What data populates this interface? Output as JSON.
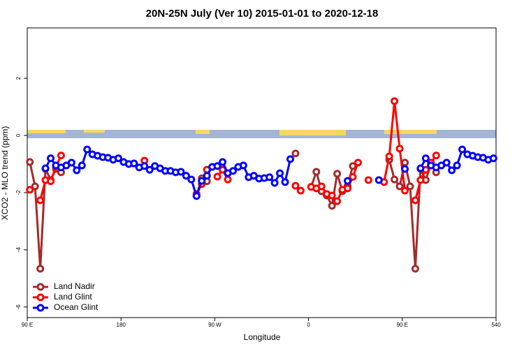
{
  "chart_data": {
    "type": "line",
    "title": "20N-25N July (Ver 10)   2015-01-01 to 2020-12-18",
    "xlabel": "Longitude",
    "ylabel": "XCO2 - MLO trend (ppm)",
    "xlim": [
      90,
      540
    ],
    "ylim": [
      -6.37,
      3.76
    ],
    "xticks": [
      {
        "value": 90,
        "label": "90 E"
      },
      180,
      {
        "value": 270,
        "label": "90 W"
      },
      {
        "value": 360,
        "label": "0"
      },
      {
        "value": 450,
        "label": "90 E"
      },
      540
    ],
    "yticks": [
      2,
      0,
      -2,
      -4,
      -6
    ],
    "legend": "bottomleft",
    "series": [
      {
        "name": "Land Nadir",
        "color": "#a52a2a",
        "x": [
          92.5,
          97.5,
          102.5,
          107.5,
          112.5,
          117.5,
          122.5,
          127.5,
          252.5,
          257.5,
          262.5,
          342.5,
          347.5,
          352.5,
          362.5,
          367.5,
          372.5,
          377.5,
          382.5,
          387.5,
          392.5,
          397.5,
          402.5,
          407.5,
          437.5,
          442.5,
          447.5,
          452.5,
          457.5,
          462.5,
          467.5,
          472.5,
          477.5,
          482.5
        ],
        "values": [
          -0.93,
          -1.78,
          -4.66,
          -1.17,
          -1.56,
          -1.17,
          -1.29,
          null,
          -2.1,
          -1.5,
          -1.6,
          null,
          -0.63,
          null,
          -1.8,
          -1.27,
          -1.95,
          -2.1,
          -2.46,
          -1.34,
          -1.95,
          -1.76,
          -1.07,
          null,
          -0.85,
          -1.54,
          -1.78,
          -0.95,
          -1.78,
          -4.66,
          -1.17,
          -1.56,
          -1.0,
          -1.29
        ]
      },
      {
        "name": "Land Glint",
        "color": "#ff0000",
        "x": [
          92.5,
          97.5,
          102.5,
          107.5,
          112.5,
          117.5,
          122.5,
          127.5,
          202.5,
          207.5,
          252.5,
          257.5,
          262.5,
          267.5,
          272.5,
          277.5,
          282.5,
          287.5,
          347.5,
          352.5,
          357.5,
          362.5,
          367.5,
          372.5,
          377.5,
          382.5,
          387.5,
          392.5,
          397.5,
          402.5,
          407.5,
          412.5,
          417.5,
          422.5,
          432.5,
          437.5,
          442.5,
          447.5,
          452.5,
          457.5,
          462.5,
          467.5,
          472.5,
          477.5,
          482.5
        ],
        "values": [
          -1.9,
          null,
          -2.27,
          -1.56,
          -1.6,
          -1.1,
          -0.7,
          null,
          -0.88,
          null,
          -2.05,
          -1.7,
          -1.2,
          null,
          -1.44,
          -1.2,
          -1.54,
          null,
          -1.76,
          -1.93,
          null,
          -1.8,
          -1.85,
          -1.78,
          -2.05,
          -2.1,
          -2.3,
          -1.9,
          -1.85,
          -1.45,
          -0.95,
          null,
          -1.56,
          null,
          -1.63,
          -0.73,
          1.2,
          -0.46,
          -1.93,
          null,
          -2.27,
          -1.56,
          -1.2,
          -0.95,
          -0.7
        ]
      },
      {
        "name": "Ocean Glint",
        "color": "#0000ff",
        "x": [
          107.5,
          112.5,
          117.5,
          122.5,
          127.5,
          132.5,
          137.5,
          142.5,
          147.5,
          152.5,
          157.5,
          162.5,
          167.5,
          172.5,
          177.5,
          182.5,
          187.5,
          192.5,
          197.5,
          202.5,
          207.5,
          212.5,
          217.5,
          222.5,
          227.5,
          232.5,
          237.5,
          242.5,
          247.5,
          252.5,
          257.5,
          262.5,
          267.5,
          272.5,
          277.5,
          282.5,
          287.5,
          292.5,
          297.5,
          302.5,
          307.5,
          312.5,
          317.5,
          322.5,
          327.5,
          332.5,
          337.5,
          342.5,
          347.5,
          397.5,
          402.5,
          427.5,
          432.5,
          452.5,
          457.5,
          467.5,
          472.5,
          477.5,
          482.5,
          487.5,
          492.5,
          497.5,
          502.5,
          507.5,
          512.5,
          517.5,
          522.5,
          527.5,
          532.5,
          537.5
        ],
        "values": [
          -1.15,
          -0.8,
          -1.05,
          -1.12,
          -1.05,
          -0.95,
          -1.22,
          -1.05,
          -0.49,
          -0.66,
          -0.71,
          -0.76,
          -0.78,
          -0.85,
          -0.8,
          -0.93,
          -1.0,
          -0.98,
          -1.12,
          -1.07,
          -1.2,
          -1.07,
          -1.15,
          -1.24,
          -1.24,
          -1.29,
          -1.27,
          -1.41,
          -1.54,
          -2.12,
          -1.59,
          -1.41,
          -1.1,
          -1.07,
          -0.93,
          -1.32,
          -1.24,
          -1.1,
          -1.05,
          -1.46,
          -1.41,
          -1.51,
          -1.49,
          -1.46,
          -1.66,
          -1.32,
          -1.63,
          -0.83,
          null,
          -1.59,
          null,
          -1.56,
          null,
          -1.17,
          null,
          -1.15,
          -0.8,
          -1.05,
          -1.12,
          -1.05,
          -0.95,
          -1.22,
          -1.05,
          -0.49,
          -0.66,
          -0.71,
          -0.76,
          -0.78,
          -0.85,
          -0.8
        ]
      }
    ]
  }
}
